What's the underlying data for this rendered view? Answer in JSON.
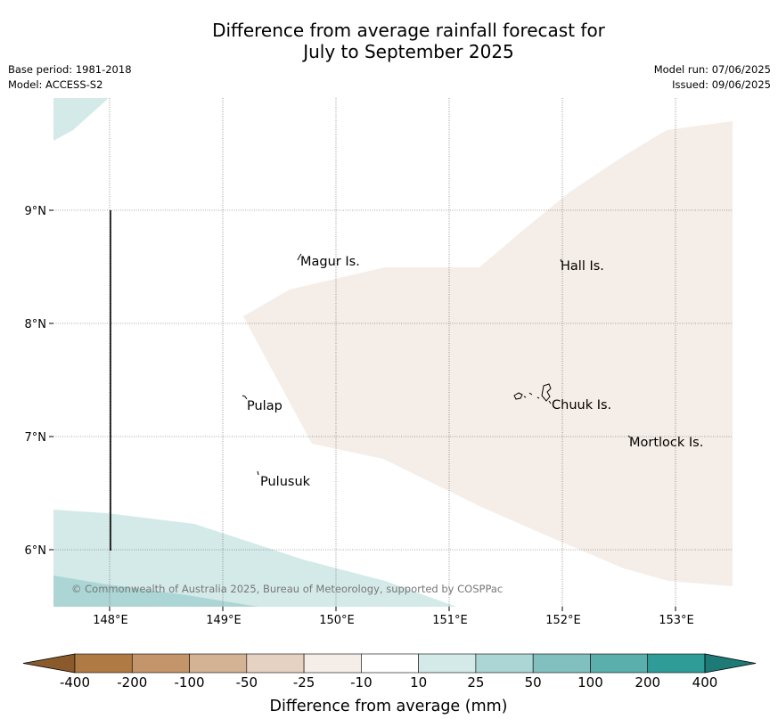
{
  "title_line1": "Difference from average rainfall forecast for",
  "title_line2": "July to September 2025",
  "base_period": "Base period: 1981-2018",
  "model": "Model: ACCESS-S2",
  "model_run": "Model run: 07/06/2025",
  "issued": "Issued: 09/06/2025",
  "copyright": "© Commonwealth of Australia 2025, Bureau of Meteorology, supported by COSPPac",
  "lon_ticks": [
    "148°E",
    "149°E",
    "150°E",
    "151°E",
    "152°E",
    "153°E"
  ],
  "lat_ticks": [
    "9°N",
    "8°N",
    "7°N",
    "6°N"
  ],
  "places": [
    {
      "name": "Magur Is.",
      "lon": 149.7,
      "lat": 8.55
    },
    {
      "name": "Hall Is.",
      "lon": 151.98,
      "lat": 8.51
    },
    {
      "name": "Pulap",
      "lon": 149.22,
      "lat": 7.28
    },
    {
      "name": "Chuuk Is.",
      "lon": 151.85,
      "lat": 7.29
    },
    {
      "name": "Mortlock Is.",
      "lon": 152.6,
      "lat": 6.96
    },
    {
      "name": "Pulusuk",
      "lon": 149.33,
      "lat": 6.61
    }
  ],
  "colorbar": {
    "label": "Difference from average (mm)",
    "tick_labels": [
      "-400",
      "-200",
      "-100",
      "-50",
      "-25",
      "-10",
      "10",
      "25",
      "50",
      "100",
      "200",
      "400"
    ],
    "colors": [
      "#8b5a2b",
      "#b07a45",
      "#c4946a",
      "#d4b294",
      "#e6d2c2",
      "#f5ede7",
      "#ffffff",
      "#d4eae8",
      "#acd6d5",
      "#82c0bf",
      "#5aaeac",
      "#2f9c98",
      "#1d7a76"
    ]
  }
}
